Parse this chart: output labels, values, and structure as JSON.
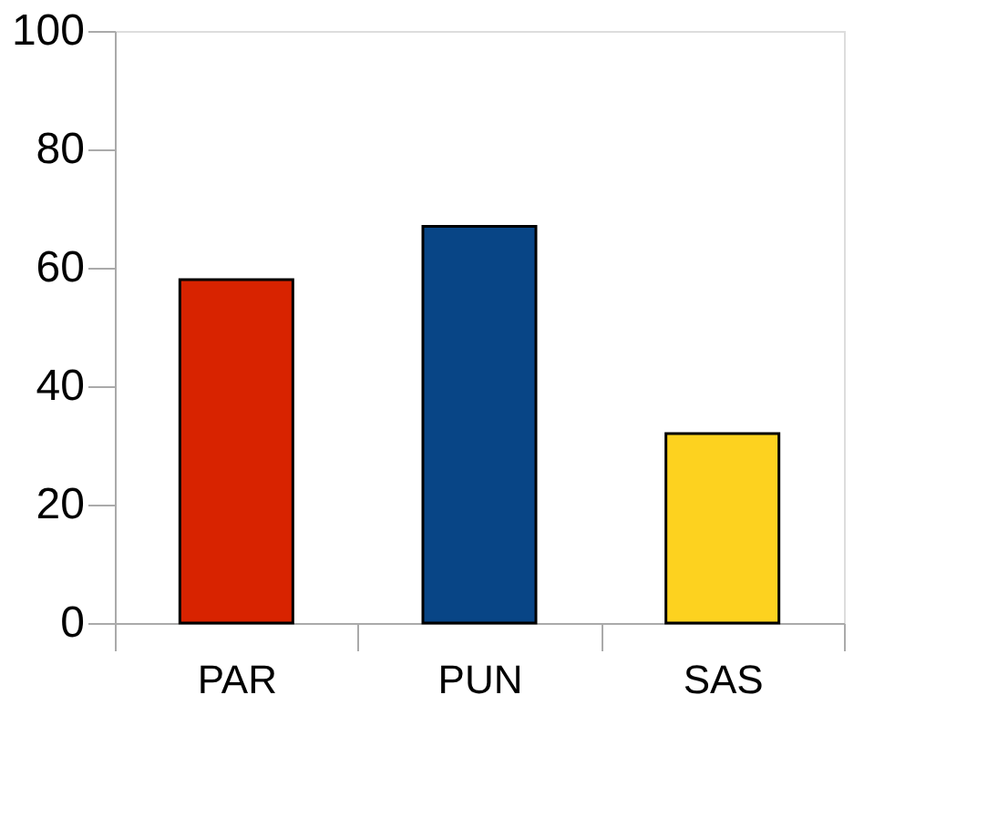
{
  "chart_data": {
    "type": "bar",
    "categories": [
      "PAR",
      "PUN",
      "SAS"
    ],
    "colors": [
      "#d82300",
      "#084586",
      "#fdd21f"
    ],
    "values": [
      58,
      67,
      32
    ],
    "ylim": [
      0,
      100
    ],
    "yticks": [
      0,
      20,
      40,
      60,
      80,
      100
    ],
    "grid": false
  }
}
